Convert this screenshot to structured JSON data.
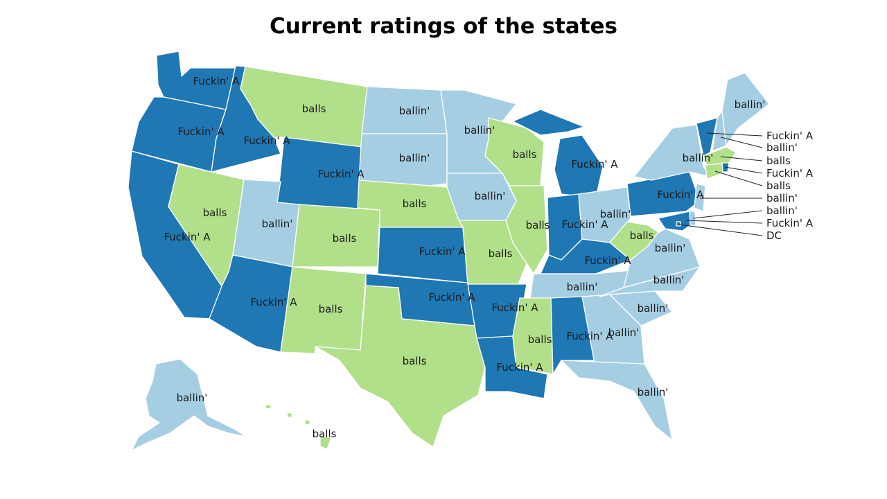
{
  "title": "Current ratings of the states",
  "colors": {
    "Fuckin' A": "#1f77b4",
    "ballin'": "#a6cee3",
    "balls": "#b2df8a"
  },
  "states": [
    {
      "code": "WA",
      "rating": "Fuckin' A"
    },
    {
      "code": "OR",
      "rating": "Fuckin' A"
    },
    {
      "code": "CA",
      "rating": "Fuckin' A"
    },
    {
      "code": "ID",
      "rating": "Fuckin' A"
    },
    {
      "code": "NV",
      "rating": "balls"
    },
    {
      "code": "MT",
      "rating": "balls"
    },
    {
      "code": "WY",
      "rating": "Fuckin' A"
    },
    {
      "code": "UT",
      "rating": "ballin'"
    },
    {
      "code": "AZ",
      "rating": "Fuckin' A"
    },
    {
      "code": "CO",
      "rating": "balls"
    },
    {
      "code": "NM",
      "rating": "balls"
    },
    {
      "code": "ND",
      "rating": "ballin'"
    },
    {
      "code": "SD",
      "rating": "ballin'"
    },
    {
      "code": "NE",
      "rating": "balls"
    },
    {
      "code": "KS",
      "rating": "Fuckin' A"
    },
    {
      "code": "OK",
      "rating": "Fuckin' A"
    },
    {
      "code": "TX",
      "rating": "balls"
    },
    {
      "code": "MN",
      "rating": "ballin'"
    },
    {
      "code": "IA",
      "rating": "ballin'"
    },
    {
      "code": "MO",
      "rating": "balls"
    },
    {
      "code": "AR",
      "rating": "Fuckin' A"
    },
    {
      "code": "LA",
      "rating": "Fuckin' A"
    },
    {
      "code": "WI",
      "rating": "balls"
    },
    {
      "code": "IL",
      "rating": "balls"
    },
    {
      "code": "MI",
      "rating": "Fuckin' A"
    },
    {
      "code": "IN",
      "rating": "Fuckin' A"
    },
    {
      "code": "OH",
      "rating": "ballin'"
    },
    {
      "code": "KY",
      "rating": "Fuckin' A"
    },
    {
      "code": "TN",
      "rating": "ballin'"
    },
    {
      "code": "MS",
      "rating": "balls"
    },
    {
      "code": "AL",
      "rating": "Fuckin' A"
    },
    {
      "code": "GA",
      "rating": "ballin'"
    },
    {
      "code": "FL",
      "rating": "ballin'"
    },
    {
      "code": "SC",
      "rating": "ballin'"
    },
    {
      "code": "NC",
      "rating": "ballin'"
    },
    {
      "code": "VA",
      "rating": "ballin'"
    },
    {
      "code": "WV",
      "rating": "balls"
    },
    {
      "code": "PA",
      "rating": "Fuckin' A"
    },
    {
      "code": "NY",
      "rating": "ballin'"
    },
    {
      "code": "VT",
      "rating": "Fuckin' A"
    },
    {
      "code": "NH",
      "rating": "ballin'"
    },
    {
      "code": "ME",
      "rating": "ballin'"
    },
    {
      "code": "MA",
      "rating": "balls"
    },
    {
      "code": "RI",
      "rating": "Fuckin' A"
    },
    {
      "code": "CT",
      "rating": "balls"
    },
    {
      "code": "NJ",
      "rating": "ballin'"
    },
    {
      "code": "DE",
      "rating": "ballin'"
    },
    {
      "code": "MD",
      "rating": "Fuckin' A"
    },
    {
      "code": "DC",
      "rating": "Fuckin' A"
    },
    {
      "code": "AK",
      "rating": "ballin'"
    },
    {
      "code": "HI",
      "rating": "balls"
    }
  ],
  "callouts": [
    {
      "label": "Fuckin' A"
    },
    {
      "label": "ballin'"
    },
    {
      "label": "balls"
    },
    {
      "label": "Fuckin' A"
    },
    {
      "label": "balls"
    },
    {
      "label": "ballin'"
    },
    {
      "label": "ballin'"
    },
    {
      "label": "Fuckin' A"
    },
    {
      "label": "DC"
    }
  ]
}
